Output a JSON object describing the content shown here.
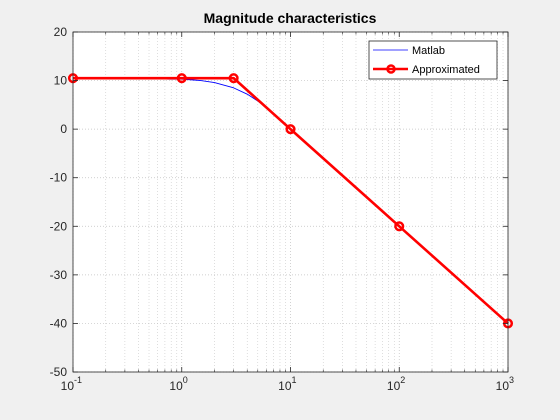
{
  "chart_data": {
    "type": "line",
    "title": "Magnitude characteristics",
    "xlabel": "",
    "ylabel": "",
    "xscale": "log",
    "xlim": [
      0.1,
      1000
    ],
    "ylim": [
      -50,
      20
    ],
    "x_ticks": [
      {
        "base": "10",
        "exp": "-1"
      },
      {
        "base": "10",
        "exp": "0"
      },
      {
        "base": "10",
        "exp": "1"
      },
      {
        "base": "10",
        "exp": "2"
      },
      {
        "base": "10",
        "exp": "3"
      }
    ],
    "y_ticks": [
      "20",
      "10",
      "0",
      "-10",
      "-20",
      "-30",
      "-40",
      "-50"
    ],
    "y_tick_values": [
      20,
      10,
      0,
      -10,
      -20,
      -30,
      -40,
      -50
    ],
    "grid": "on (major and minor, dotted)",
    "legend_position": "top-right",
    "series": [
      {
        "name": "Matlab",
        "color": "#0000ff",
        "style": "thin solid line",
        "x": [
          0.1,
          0.3,
          0.5,
          0.8,
          1,
          1.5,
          2,
          3,
          4,
          5,
          6,
          7,
          8,
          9,
          10,
          15,
          20,
          30,
          50,
          100,
          200,
          500,
          1000
        ],
        "y": [
          10.5,
          10.5,
          10.4,
          10.3,
          10.3,
          10.0,
          9.6,
          8.5,
          7.2,
          5.8,
          4.5,
          3.2,
          2.0,
          1.0,
          0.0,
          -3.5,
          -6.0,
          -9.5,
          -14.0,
          -20.0,
          -26.0,
          -34.0,
          -40.0
        ]
      },
      {
        "name": "Approximated",
        "color": "#ff0000",
        "style": "thick solid line with circle markers",
        "x": [
          0.1,
          1,
          3,
          10,
          100,
          1000
        ],
        "y": [
          10.5,
          10.5,
          10.5,
          0,
          -20,
          -40
        ]
      }
    ]
  }
}
